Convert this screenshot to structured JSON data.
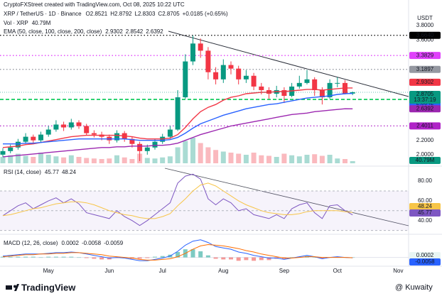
{
  "header": {
    "credit": "CryptoFXStreet created with TradingView.com, Oct 08, 2025 10:22 UTC",
    "currency": "USDT"
  },
  "footer": {
    "logo": "TradingView",
    "watermark": "@ Kuwaity"
  },
  "chart_data": [
    {
      "type": "candlestick",
      "title": "XRP / TetherUS · 1D · Binance",
      "ohlc_labels": [
        "O",
        "H",
        "L",
        "C"
      ],
      "change": "+0.0185 (+0.65%)",
      "countdown": "13:37:19",
      "up_color": "#089981",
      "down_color": "#f23645",
      "categories": [
        null,
        null,
        null,
        null,
        null,
        null,
        "May",
        null,
        null,
        null,
        null,
        null,
        null,
        null,
        "Jun",
        null,
        null,
        null,
        null,
        null,
        null,
        "Jul",
        null,
        null,
        null,
        null,
        null,
        null,
        null,
        "Aug",
        null,
        null,
        null,
        null,
        null,
        null,
        null,
        "Sep",
        null,
        null,
        null,
        null,
        null,
        null,
        "Oct",
        null,
        null,
        null,
        null,
        null,
        null,
        null,
        "Nov",
        null
      ],
      "open": [
        2.0,
        2.05,
        2.1,
        2.18,
        2.25,
        2.2,
        2.28,
        2.35,
        2.42,
        2.38,
        2.45,
        2.4,
        2.3,
        2.28,
        2.25,
        2.2,
        2.3,
        2.22,
        2.15,
        2.05,
        2.1,
        2.18,
        2.25,
        2.35,
        2.8,
        3.3,
        3.55,
        3.45,
        3.15,
        3.05,
        3.25,
        3.2,
        3.05,
        3.1,
        2.95,
        2.9,
        2.85,
        2.9,
        2.82,
        2.95,
        3.0,
        3.05,
        2.9,
        2.8,
        3.0,
        3.0,
        2.8521,
        null,
        null,
        null,
        null,
        null,
        null,
        null
      ],
      "high": [
        2.09,
        2.14,
        2.22,
        2.3,
        2.28,
        2.32,
        2.4,
        2.48,
        2.46,
        2.5,
        2.48,
        2.43,
        2.34,
        2.32,
        2.28,
        2.34,
        2.33,
        2.25,
        2.18,
        2.14,
        2.22,
        2.29,
        2.4,
        2.9,
        3.4,
        3.66,
        3.62,
        3.5,
        3.22,
        3.33,
        3.3,
        3.24,
        3.18,
        3.14,
        3.0,
        2.94,
        2.96,
        2.94,
        3.0,
        3.1,
        3.18,
        3.08,
        2.94,
        3.05,
        3.08,
        3.04,
        2.8792,
        null,
        null,
        null,
        null,
        null,
        null,
        null
      ],
      "low": [
        1.97,
        2.02,
        2.07,
        2.15,
        2.16,
        2.17,
        2.25,
        2.32,
        2.33,
        2.35,
        2.36,
        2.27,
        2.24,
        2.2,
        2.15,
        2.17,
        2.18,
        2.1,
        1.91,
        2.0,
        2.07,
        2.15,
        2.22,
        2.33,
        2.78,
        3.25,
        3.35,
        3.05,
        2.98,
        3.0,
        3.12,
        2.98,
        3.0,
        2.9,
        2.84,
        2.78,
        2.8,
        2.72,
        2.8,
        2.92,
        2.98,
        2.82,
        2.7,
        2.78,
        2.94,
        2.84,
        2.8303,
        null,
        null,
        null,
        null,
        null,
        null,
        null
      ],
      "close": [
        2.05,
        2.1,
        2.18,
        2.25,
        2.2,
        2.28,
        2.35,
        2.42,
        2.38,
        2.45,
        2.4,
        2.3,
        2.28,
        2.25,
        2.2,
        2.3,
        2.22,
        2.15,
        2.05,
        2.1,
        2.18,
        2.25,
        2.35,
        2.8,
        3.3,
        3.55,
        3.45,
        3.15,
        3.05,
        3.25,
        3.2,
        3.05,
        3.1,
        2.95,
        2.9,
        2.85,
        2.9,
        2.82,
        2.95,
        3.0,
        3.05,
        2.9,
        2.8,
        3.0,
        3.0,
        2.852,
        2.8705,
        null,
        null,
        null,
        null,
        null,
        null,
        null
      ],
      "volume": {
        "title": "Vol · XRP",
        "last_label": "40.79M",
        "vlim": [
          0,
          600
        ],
        "values": [
          120,
          150,
          180,
          140,
          120,
          200,
          160,
          130,
          110,
          150,
          120,
          100,
          90,
          80,
          90,
          150,
          110,
          80,
          180,
          100,
          90,
          110,
          130,
          300,
          420,
          480,
          380,
          300,
          250,
          220,
          200,
          180,
          160,
          200,
          150,
          140,
          120,
          180,
          150,
          130,
          160,
          170,
          140,
          160,
          90,
          80,
          40.79,
          null,
          null,
          null,
          null,
          null,
          null,
          null
        ]
      },
      "ema_title": "EMA (50, close, 100, close, 200, close)",
      "series": [
        {
          "color": "#f23645",
          "values": [
            2.1,
            2.11,
            2.12,
            2.14,
            2.15,
            2.17,
            2.19,
            2.21,
            2.23,
            2.25,
            2.26,
            2.27,
            2.27,
            2.27,
            2.27,
            2.27,
            2.26,
            2.25,
            2.23,
            2.22,
            2.22,
            2.22,
            2.23,
            2.28,
            2.38,
            2.5,
            2.6,
            2.66,
            2.7,
            2.76,
            2.8,
            2.82,
            2.85,
            2.86,
            2.87,
            2.87,
            2.88,
            2.88,
            2.89,
            2.9,
            2.91,
            2.91,
            2.9,
            2.91,
            2.92,
            2.93,
            2.9302,
            null,
            null,
            null,
            null,
            null,
            null,
            null
          ]
        },
        {
          "color": "#2962ff",
          "values": [
            2.15,
            2.15,
            2.15,
            2.16,
            2.16,
            2.17,
            2.18,
            2.19,
            2.2,
            2.21,
            2.22,
            2.22,
            2.22,
            2.22,
            2.22,
            2.22,
            2.22,
            2.21,
            2.2,
            2.2,
            2.2,
            2.2,
            2.21,
            2.24,
            2.3,
            2.37,
            2.43,
            2.47,
            2.51,
            2.55,
            2.58,
            2.61,
            2.64,
            2.66,
            2.68,
            2.7,
            2.71,
            2.73,
            2.75,
            2.77,
            2.79,
            2.8,
            2.81,
            2.82,
            2.84,
            2.85,
            2.8542,
            null,
            null,
            null,
            null,
            null,
            null,
            null
          ]
        },
        {
          "color": "#9c27b0",
          "values": [
            1.97,
            1.98,
            1.99,
            2.0,
            2.01,
            2.02,
            2.03,
            2.04,
            2.05,
            2.06,
            2.07,
            2.08,
            2.09,
            2.1,
            2.1,
            2.11,
            2.11,
            2.12,
            2.12,
            2.12,
            2.13,
            2.13,
            2.14,
            2.16,
            2.2,
            2.24,
            2.28,
            2.31,
            2.34,
            2.37,
            2.4,
            2.42,
            2.44,
            2.46,
            2.48,
            2.5,
            2.52,
            2.54,
            2.56,
            2.57,
            2.58,
            2.6,
            2.61,
            2.62,
            2.63,
            2.64,
            2.6392,
            null,
            null,
            null,
            null,
            null,
            null,
            null
          ]
        }
      ],
      "levels": [
        {
          "value": 3.664,
          "label": "3.6640",
          "color": "#000000"
        },
        {
          "value": 3.3829,
          "label": "3.3829",
          "color": "#e040fb"
        },
        {
          "value": 3.1897,
          "label": "3.1897",
          "color": "#9598a1"
        },
        {
          "value": 2.77,
          "color": "#00c853"
        },
        {
          "value": 2.4011,
          "label": "2.4011",
          "color": "#b023c7"
        }
      ],
      "ylim": [
        1.88,
        3.84
      ],
      "yticks": [
        {
          "value": 3.8,
          "label": "3.8000"
        },
        {
          "value": 3.6,
          "label": "3.6000"
        },
        {
          "value": 2.2,
          "label": "2.2000"
        },
        {
          "value": 2.0,
          "label": "2.0000"
        }
      ],
      "grid": false
    },
    {
      "type": "line",
      "title": "RSI (14, close)",
      "series": [
        {
          "color": "#7e57c2",
          "values": [
            45,
            50,
            55,
            58,
            52,
            56,
            60,
            63,
            58,
            62,
            57,
            48,
            46,
            44,
            42,
            50,
            44,
            40,
            35,
            40,
            46,
            52,
            58,
            78,
            85,
            87,
            82,
            62,
            56,
            62,
            58,
            50,
            52,
            46,
            44,
            42,
            46,
            42,
            52,
            56,
            58,
            48,
            42,
            55,
            56,
            50,
            45.77,
            null,
            null,
            null,
            null,
            null,
            null,
            null
          ]
        },
        {
          "color": "#f7c548",
          "values": [
            45,
            46,
            48,
            50,
            52,
            53,
            55,
            57,
            58,
            59,
            59,
            58,
            56,
            53,
            50,
            48,
            46,
            45,
            43,
            42,
            42,
            44,
            47,
            55,
            62,
            70,
            76,
            78,
            75,
            70,
            65,
            60,
            56,
            53,
            50,
            48,
            47,
            46,
            46,
            47,
            49,
            50,
            50,
            50,
            50,
            49,
            48.24,
            null,
            null,
            null,
            null,
            null,
            null,
            null
          ]
        }
      ],
      "levels": [
        70,
        50,
        30
      ],
      "ylim": [
        29,
        93
      ],
      "yticks": [
        {
          "value": 80,
          "label": "80.00"
        },
        {
          "value": 60,
          "label": "60.00"
        },
        {
          "value": 40,
          "label": "40.00"
        }
      ]
    },
    {
      "type": "macd",
      "title": "MACD (12, 26, close)",
      "histogram": {
        "up_color": "#26a69a",
        "down_color": "#ef5350",
        "values": [
          0.01,
          0.01,
          0.01,
          0.01,
          0.01,
          0,
          0.01,
          0.01,
          0.01,
          0.01,
          0,
          -0.01,
          -0.02,
          -0.03,
          -0.03,
          -0.01,
          -0.01,
          -0.02,
          -0.02,
          -0.01,
          0.01,
          0.02,
          0.04,
          0.08,
          0.12,
          0.12,
          0.09,
          0.03,
          -0.02,
          -0.03,
          -0.03,
          -0.05,
          -0.04,
          -0.05,
          -0.04,
          -0.04,
          -0.02,
          -0.02,
          0,
          0.01,
          0.02,
          0,
          -0.02,
          0,
          0.01,
          0,
          0.0002,
          null,
          null,
          null,
          null,
          null,
          null,
          null
        ]
      },
      "series": [
        {
          "color": "#2962ff",
          "values": [
            0.02,
            0.03,
            0.04,
            0.05,
            0.05,
            0.05,
            0.06,
            0.07,
            0.07,
            0.08,
            0.07,
            0.05,
            0.03,
            0.01,
            -0.01,
            0,
            -0.01,
            -0.03,
            -0.05,
            -0.05,
            -0.03,
            -0.01,
            0.02,
            0.09,
            0.18,
            0.24,
            0.26,
            0.22,
            0.16,
            0.14,
            0.12,
            0.08,
            0.06,
            0.03,
            0.01,
            -0.01,
            -0.01,
            -0.03,
            -0.01,
            0.01,
            0.03,
            0.01,
            -0.02,
            0,
            0.01,
            0,
            -0.0058,
            null,
            null,
            null,
            null,
            null,
            null,
            null
          ]
        },
        {
          "color": "#ff6d00",
          "values": [
            0.01,
            0.02,
            0.03,
            0.04,
            0.04,
            0.05,
            0.05,
            0.06,
            0.06,
            0.07,
            0.07,
            0.06,
            0.05,
            0.04,
            0.02,
            0.01,
            0,
            -0.01,
            -0.03,
            -0.04,
            -0.04,
            -0.03,
            -0.02,
            0.01,
            0.06,
            0.12,
            0.17,
            0.19,
            0.18,
            0.17,
            0.15,
            0.13,
            0.1,
            0.08,
            0.05,
            0.03,
            0.01,
            -0.01,
            -0.01,
            0,
            0.01,
            0.01,
            0,
            0,
            0,
            0,
            -0.0059,
            null,
            null,
            null,
            null,
            null,
            null,
            null
          ]
        }
      ],
      "ylim": [
        -0.12,
        0.3
      ]
    }
  ]
}
